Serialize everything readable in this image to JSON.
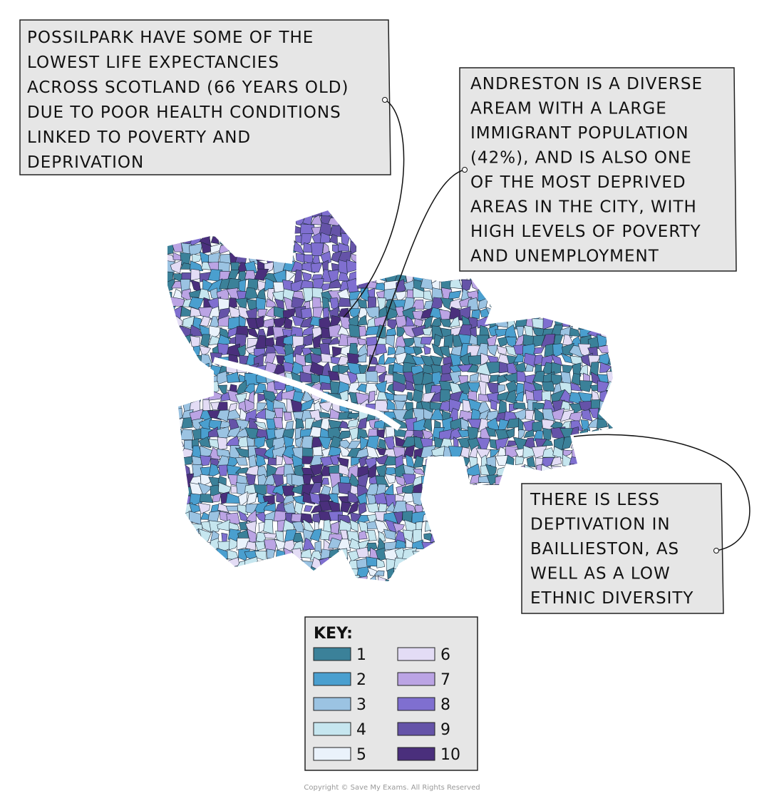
{
  "callouts": [
    {
      "lines": [
        "POSSILPARK HAVE SOME OF THE",
        "LOWEST LIFE EXPECTANCIES",
        "ACROSS SCOTLAND (66 YEARS OLD)",
        "DUE TO POOR HEALTH CONDITIONS",
        "LINKED TO POVERTY AND",
        "DEPRIVATION"
      ]
    },
    {
      "lines": [
        "ANDRESTON IS A DIVERSE",
        "AREAM WITH A LARGE",
        "IMMIGRANT POPULATION",
        "(42%), AND IS ALSO ONE",
        "OF THE MOST DEPRIVED",
        "AREAS IN THE CITY, WITH",
        "HIGH LEVELS OF POVERTY",
        "AND UNEMPLOYMENT"
      ]
    },
    {
      "lines": [
        "THERE IS LESS",
        "DEPTIVATION IN",
        "BAILLIESTON, AS",
        "WELL AS A LOW",
        "ETHNIC DIVERSITY"
      ]
    }
  ],
  "key": {
    "title": "KEY:",
    "items": [
      {
        "label": "1",
        "color": "#3b8199"
      },
      {
        "label": "2",
        "color": "#4a9fcf"
      },
      {
        "label": "3",
        "color": "#9bc3e2"
      },
      {
        "label": "4",
        "color": "#c6e6ef"
      },
      {
        "label": "5",
        "color": "#eaf2fb"
      },
      {
        "label": "6",
        "color": "#e3dcf5"
      },
      {
        "label": "7",
        "color": "#bba4e4"
      },
      {
        "label": "8",
        "color": "#7f6fd0"
      },
      {
        "label": "9",
        "color": "#6553a8"
      },
      {
        "label": "10",
        "color": "#4a2f7c"
      }
    ]
  },
  "copyright": "Copyright © Save My Exams. All Rights Reserved"
}
